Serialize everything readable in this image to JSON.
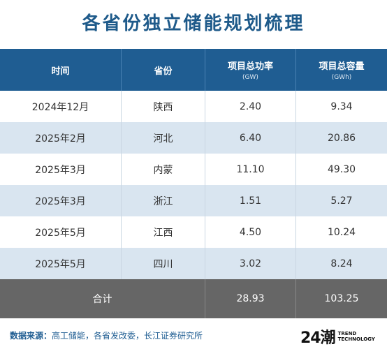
{
  "title": "各省份独立储能规划梳理",
  "header": {
    "col_time": "时间",
    "col_province": "省份",
    "col_power": "项目总功率",
    "col_power_unit": "(GW)",
    "col_capacity": "项目总容量",
    "col_capacity_unit": "(GWh)"
  },
  "rows": [
    {
      "time": "2024年12月",
      "province": "陕西",
      "power": "2.40",
      "capacity": "9.34"
    },
    {
      "time": "2025年2月",
      "province": "河北",
      "power": "6.40",
      "capacity": "20.86"
    },
    {
      "time": "2025年3月",
      "province": "内蒙",
      "power": "11.10",
      "capacity": "49.30"
    },
    {
      "time": "2025年3月",
      "province": "浙江",
      "power": "1.51",
      "capacity": "5.27"
    },
    {
      "time": "2025年5月",
      "province": "江西",
      "power": "4.50",
      "capacity": "10.24"
    },
    {
      "time": "2025年5月",
      "province": "四川",
      "power": "3.02",
      "capacity": "8.24"
    }
  ],
  "total": {
    "label": "合计",
    "power": "28.93",
    "capacity": "103.25"
  },
  "footer": {
    "source_label": "数据来源：",
    "source_text": "高工储能，各省发改委，长江证券研究所",
    "logo_mark": "24潮",
    "logo_line1": "TREND",
    "logo_line2": "TECHNOLOGY"
  },
  "colors": {
    "header": "#1f5d92",
    "shade": "#d9e5f0",
    "total": "#666666",
    "title": "#1e5a8a"
  }
}
